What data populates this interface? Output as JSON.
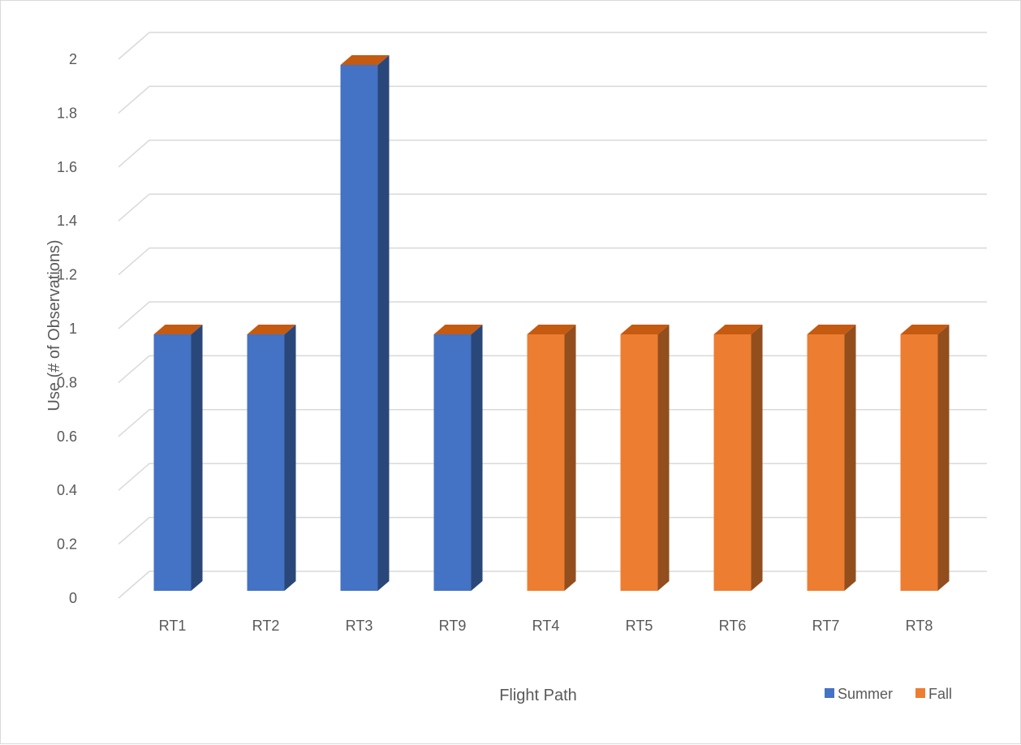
{
  "chart_data": {
    "type": "bar",
    "style": "3d-clustered-column",
    "categories": [
      "RT1",
      "RT2",
      "RT3",
      "RT9",
      "RT4",
      "RT5",
      "RT6",
      "RT7",
      "RT8"
    ],
    "series": [
      {
        "name": "Summer",
        "color": "#4472C4",
        "values": [
          1,
          1,
          2,
          1,
          0,
          0,
          0,
          0,
          0
        ]
      },
      {
        "name": "Fall",
        "color": "#ED7D31",
        "values": [
          0,
          0,
          0,
          0,
          1,
          1,
          1,
          1,
          1
        ]
      }
    ],
    "xlabel": "Flight Path",
    "ylabel": "Use (# of Observations)",
    "ylim": [
      0,
      2
    ],
    "yticks": [
      "0",
      "0.2",
      "0.4",
      "0.6",
      "0.8",
      "1",
      "1.2",
      "1.4",
      "1.6",
      "1.8",
      "2"
    ],
    "grid": true,
    "legend_position": "bottom-right"
  }
}
